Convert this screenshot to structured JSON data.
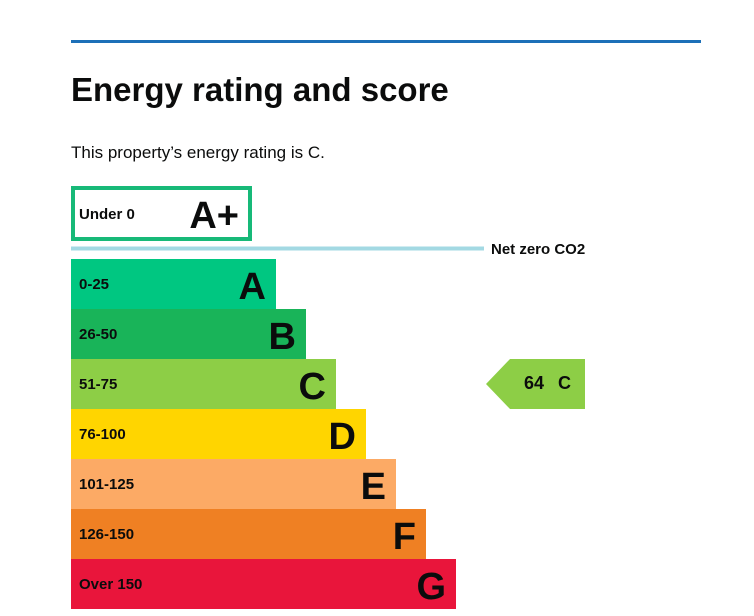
{
  "page": {
    "title": "Energy rating and score",
    "summary": "This property’s energy rating is C."
  },
  "chart_data": {
    "type": "bar",
    "bands": [
      {
        "letter": "A+",
        "range": "Under 0",
        "color": "#ffffff",
        "border": "#17b978"
      },
      {
        "letter": "A",
        "range": "0-25",
        "color": "#00c781"
      },
      {
        "letter": "B",
        "range": "26-50",
        "color": "#19b459"
      },
      {
        "letter": "C",
        "range": "51-75",
        "color": "#8dce46"
      },
      {
        "letter": "D",
        "range": "76-100",
        "color": "#ffd500"
      },
      {
        "letter": "E",
        "range": "101-125",
        "color": "#fcaa65"
      },
      {
        "letter": "F",
        "range": "126-150",
        "color": "#ef8023"
      },
      {
        "letter": "G",
        "range": "Over 150",
        "color": "#e9153b"
      }
    ],
    "threshold": {
      "label": "Net zero CO2",
      "color": "#a3d9e3"
    },
    "current": {
      "score": "64",
      "letter": "C",
      "color": "#8dce46"
    }
  }
}
